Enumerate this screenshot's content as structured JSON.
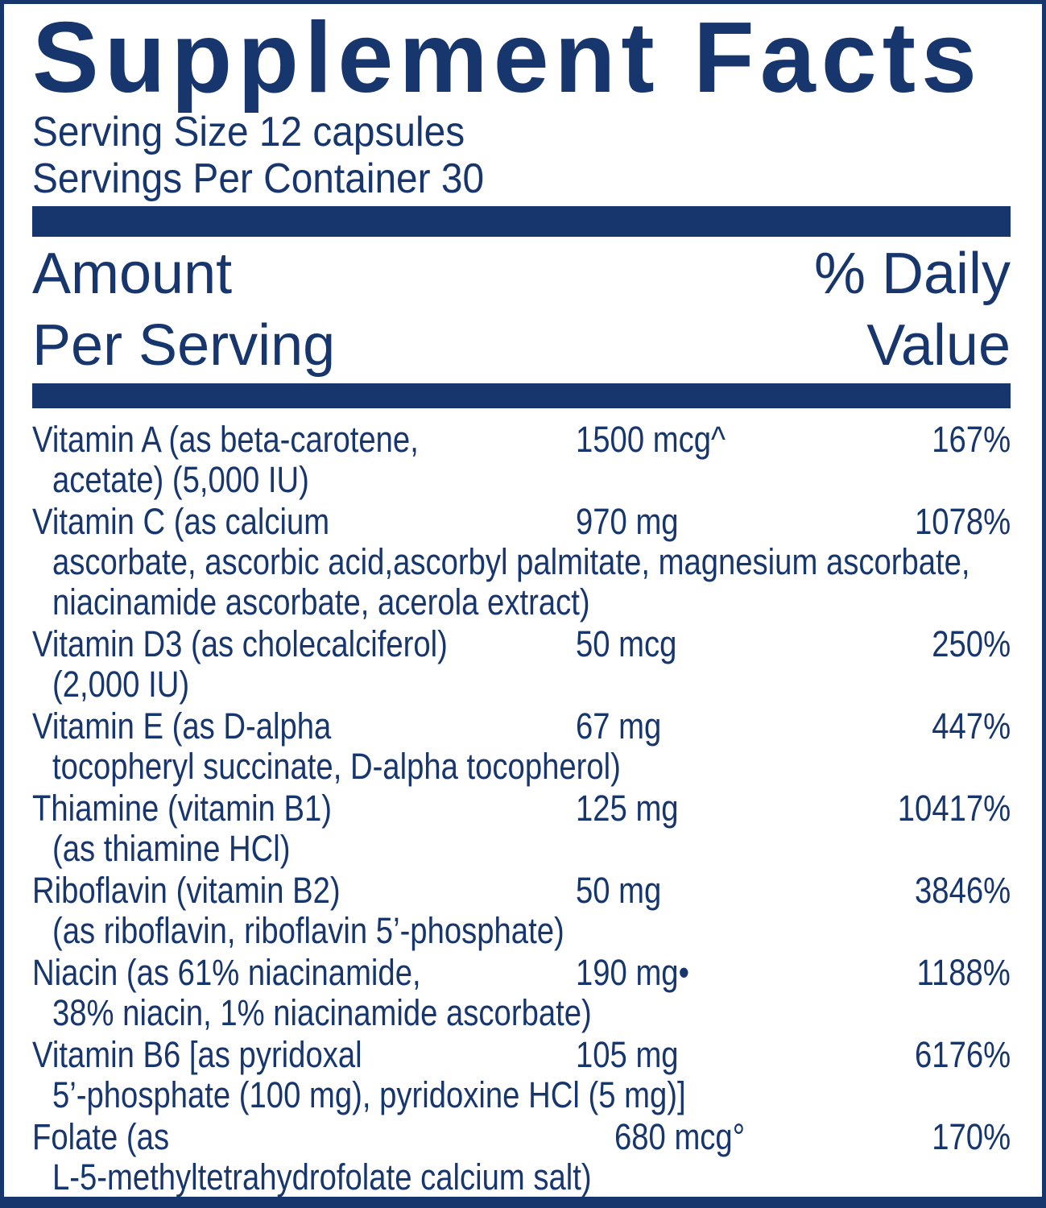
{
  "label": {
    "title": "Supplement Facts",
    "serving_size": "Serving Size 12 capsules",
    "servings_per_container": "Servings Per Container 30",
    "header": {
      "amount_line1": "Amount",
      "amount_line2": "Per Serving",
      "dv_line1": "% Daily",
      "dv_line2": "Value"
    },
    "colors": {
      "navy": "#17366d",
      "background": "#ffffff"
    },
    "rows": [
      {
        "name": "Vitamin A (as beta-carotene,",
        "amount": "1500 mcg^",
        "dv": "167%",
        "details": [
          "acetate) (5,000 IU)"
        ]
      },
      {
        "name": "Vitamin C (as calcium",
        "amount": "970 mg",
        "dv": "1078%",
        "details": [
          "ascorbate, ascorbic acid,ascorbyl palmitate, magnesium ascorbate,",
          "niacinamide ascorbate, acerola extract)"
        ]
      },
      {
        "name": "Vitamin D3 (as cholecalciferol)",
        "amount": "50 mcg",
        "dv": "250%",
        "details": [
          "(2,000 IU)"
        ]
      },
      {
        "name": "Vitamin E (as D-alpha",
        "amount": "67 mg",
        "dv": "447%",
        "details": [
          "tocopheryl succinate, D-alpha tocopherol)"
        ]
      },
      {
        "name": "Thiamine (vitamin B1)",
        "amount": "125 mg",
        "dv": "10417%",
        "details": [
          "(as thiamine HCl)"
        ]
      },
      {
        "name": "Riboflavin (vitamin B2)",
        "amount": "50 mg",
        "dv": "3846%",
        "details": [
          "(as riboflavin, riboflavin 5’-phosphate)"
        ]
      },
      {
        "name": "Niacin (as 61% niacinamide,",
        "amount": "190 mg•",
        "dv": "1188%",
        "details": [
          "38% niacin, 1% niacinamide ascorbate)"
        ]
      },
      {
        "name": "Vitamin B6 [as pyridoxal",
        "amount": "105 mg",
        "dv": "6176%",
        "details": [
          "5’-phosphate (100 mg), pyridoxine HCl (5 mg)]"
        ]
      },
      {
        "name": "Folate (as",
        "amount": "680 mcg°",
        "dv": "170%",
        "amount_shift": true,
        "details": [
          "L-5-methyltetrahydrofolate calcium salt)"
        ]
      }
    ]
  }
}
